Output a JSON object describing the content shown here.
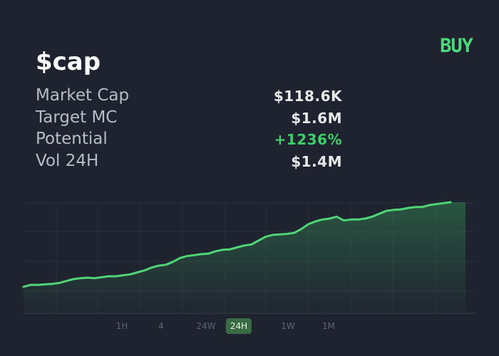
{
  "token": {
    "name": "$cap"
  },
  "actions": {
    "buy_label": "BUY"
  },
  "stats": [
    {
      "label": "Market Cap",
      "value": "$118.6K"
    },
    {
      "label": "Target MC",
      "value": "$1.6M"
    },
    {
      "label": "Potential",
      "value": "+1236%"
    },
    {
      "label": "Vol 24H",
      "value": "$1.4M"
    }
  ],
  "timeframes": [
    {
      "label": "1H",
      "active": false
    },
    {
      "label": "4",
      "active": false
    },
    {
      "label": "24W",
      "active": false
    },
    {
      "label": "24H",
      "active": true
    },
    {
      "label": "1W",
      "active": false
    },
    {
      "label": "1M",
      "active": false
    }
  ],
  "colors": {
    "background": "#1f2330",
    "accent": "#4cd97a",
    "positive": "#3fce6a",
    "line": "#4fd576",
    "active_tab": "#3a6b45"
  },
  "chart_data": {
    "type": "area",
    "title": "",
    "xlabel": "",
    "ylabel": "",
    "grid": true,
    "values": [
      12,
      14,
      14,
      14.5,
      15,
      16,
      18,
      20,
      21,
      21.5,
      21,
      22,
      23,
      23,
      24,
      25,
      27,
      29,
      32,
      34,
      35,
      38,
      42,
      44,
      45,
      46,
      46.5,
      49,
      50.5,
      51,
      53,
      55,
      56,
      60,
      64,
      66,
      66.5,
      67,
      68,
      72,
      77,
      80,
      82,
      83,
      85,
      81,
      82,
      82,
      83,
      85,
      88,
      91,
      92,
      92.5,
      94,
      95,
      95,
      97,
      98,
      99,
      100
    ],
    "ylim": [
      0,
      100
    ]
  }
}
